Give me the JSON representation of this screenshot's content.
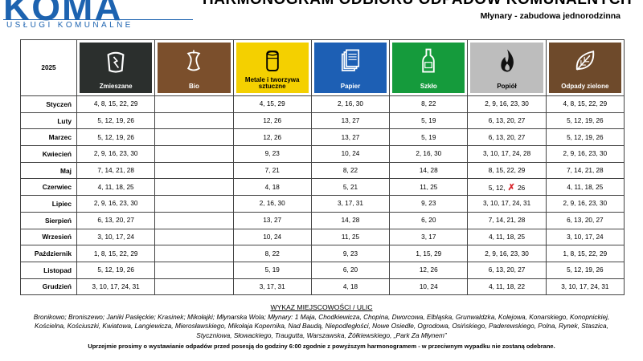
{
  "header": {
    "logo_text": "KOMA",
    "logo_subtitle": "USŁUGI KOMUNALNE",
    "title": "HARMONOGRAM ODBIORU ODPADÓW KOMUNALNYCH",
    "subtitle": "Młynary - zabudowa jednorodzinna"
  },
  "table": {
    "year": "2025",
    "categories": [
      {
        "label": "Zmieszane",
        "color": "#2b2f2d",
        "text_color": "#ffffff",
        "icon": "trash-bin-icon"
      },
      {
        "label": "Bio",
        "color": "#7b4f2c",
        "text_color": "#ffffff",
        "icon": "apple-core-icon"
      },
      {
        "label": "Metale i tworzywa sztuczne",
        "color": "#f4d000",
        "text_color": "#000000",
        "icon": "can-icon"
      },
      {
        "label": "Papier",
        "color": "#1d5fb4",
        "text_color": "#ffffff",
        "icon": "paper-stack-icon"
      },
      {
        "label": "Szkło",
        "color": "#159b3c",
        "text_color": "#ffffff",
        "icon": "bottle-icon"
      },
      {
        "label": "Popiół",
        "color": "#bdbdbd",
        "text_color": "#000000",
        "icon": "flame-icon"
      },
      {
        "label": "Odpady zielone",
        "color": "#6e4a2b",
        "text_color": "#ffffff",
        "icon": "leaf-icon"
      }
    ],
    "rows": [
      {
        "month": "Styczeń",
        "cells": [
          "4, 8, 15, 22, 29",
          "",
          "4, 15, 29",
          "2, 16, 30",
          "8, 22",
          "2, 9, 16, 23, 30",
          "4, 8, 15, 22, 29"
        ]
      },
      {
        "month": "Luty",
        "cells": [
          "5, 12, 19, 26",
          "",
          "12, 26",
          "13, 27",
          "5, 19",
          "6, 13, 20, 27",
          "5, 12, 19, 26"
        ]
      },
      {
        "month": "Marzec",
        "cells": [
          "5, 12, 19, 26",
          "",
          "12, 26",
          "13, 27",
          "5, 19",
          "6, 13, 20, 27",
          "5, 12, 19, 26"
        ]
      },
      {
        "month": "Kwiecień",
        "cells": [
          "2, 9, 16, 23, 30",
          "",
          "9, 23",
          "10, 24",
          "2, 16, 30",
          "3, 10, 17, 24, 28",
          "2, 9, 16, 23, 30"
        ]
      },
      {
        "month": "Maj",
        "cells": [
          "7, 14, 21, 28",
          "",
          "7, 21",
          "8, 22",
          "14, 28",
          "8, 15, 22, 29",
          "7, 14, 21, 28"
        ]
      },
      {
        "month": "Czerwiec",
        "cells": [
          "4, 11, 18, 25",
          "",
          "4, 18",
          "5, 21",
          "11, 25",
          "5, 12, ✗ 26",
          "4, 11, 18, 25"
        ]
      },
      {
        "month": "Lipiec",
        "cells": [
          "2, 9, 16, 23, 30",
          "",
          "2, 16, 30",
          "3, 17, 31",
          "9, 23",
          "3, 10, 17, 24, 31",
          "2, 9, 16, 23, 30"
        ]
      },
      {
        "month": "Sierpień",
        "cells": [
          "6, 13, 20, 27",
          "",
          "13, 27",
          "14, 28",
          "6, 20",
          "7, 14, 21, 28",
          "6, 13, 20, 27"
        ]
      },
      {
        "month": "Wrzesień",
        "cells": [
          "3, 10, 17, 24",
          "",
          "10, 24",
          "11, 25",
          "3, 17",
          "4, 11, 18, 25",
          "3, 10, 17, 24"
        ]
      },
      {
        "month": "Październik",
        "cells": [
          "1, 8, 15, 22, 29",
          "",
          "8, 22",
          "9, 23",
          "1, 15, 29",
          "2, 9, 16, 23, 30",
          "1, 8, 15, 22, 29"
        ]
      },
      {
        "month": "Listopad",
        "cells": [
          "5, 12, 19, 26",
          "",
          "5, 19",
          "6, 20",
          "12, 26",
          "6, 13, 20, 27",
          "5, 12, 19, 26"
        ]
      },
      {
        "month": "Grudzień",
        "cells": [
          "3, 10, 17, 24, 31",
          "",
          "3, 17, 31",
          "4, 18",
          "10, 24",
          "4, 11, 18, 22",
          "3, 10, 17, 24, 31"
        ]
      }
    ]
  },
  "footer": {
    "heading": "WYKAZ MIEJSCOWOŚCI / ULIC",
    "locations": "Bronikowo; Broniszewo; Janiki Pasłęckie; Krasinek; Mikołajki; Młynarska Wola; Młynary: 1 Maja, Chodkiewicza, Chopina, Dworcowa, Elbląska, Grunwaldzka, Kolejowa, Konarskiego, Konopnickiej, Kościelna, Kościuszki, Kwiatowa, Langiewicza, Mierosławskiego, Mikołaja Kopernika, Nad Baudą, Niepodległości, Nowe Osiedle, Ogrodowa, Osińskiego, Paderewskiego, Polna, Rynek, Staszica, Styczniowa, Słowackiego, Traugutta, Warszawska, Żółkiewskiego, „Park Za Młynem”",
    "note": "Uprzejmie prosimy o wystawianie odpadów przed posesją do godziny 6:00 zgodnie z powyższym harmonogramem - w przeciwnym wypadku nie zostaną odebrane."
  }
}
